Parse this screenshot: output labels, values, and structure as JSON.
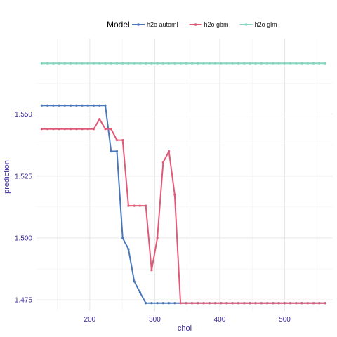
{
  "chart_data": {
    "type": "line",
    "xlabel": "chol",
    "ylabel": "prediction",
    "xlim": [
      118,
      574
    ],
    "ylim": [
      1.4705,
      1.5805
    ],
    "x_ticks": [
      200,
      300,
      400,
      500
    ],
    "y_ticks": [
      1.475,
      1.5,
      1.525,
      1.55
    ],
    "x_tick_labels": [
      "200",
      "300",
      "400",
      "500"
    ],
    "y_tick_labels": [
      "1.475",
      "1.500",
      "1.525",
      "1.550"
    ],
    "grid": true,
    "legend": {
      "title": "Model",
      "position": "top"
    },
    "axis_color": "#3b2a9c",
    "x": [
      126,
      134.9,
      143.8,
      152.7,
      161.6,
      170.5,
      179.4,
      188.3,
      197.2,
      206.1,
      215,
      223.9,
      232.8,
      241.7,
      250.6,
      259.5,
      268.4,
      277.3,
      286.2,
      295.1,
      304,
      312.9,
      321.8,
      330.7,
      339.6,
      348.5,
      357.4,
      366.3,
      375.2,
      384.1,
      393,
      401.9,
      410.8,
      419.7,
      428.6,
      437.5,
      446.4,
      455.3,
      464.2,
      473.1,
      482,
      490.9,
      499.8,
      508.7,
      517.6,
      526.5,
      535.4,
      544.3,
      553.2,
      562.1
    ],
    "series": [
      {
        "name": "h2o automl",
        "color": "#4a77ba",
        "values": [
          1.5535,
          1.5535,
          1.5535,
          1.5535,
          1.5535,
          1.5535,
          1.5535,
          1.5535,
          1.5535,
          1.5535,
          1.5535,
          1.5535,
          1.535,
          1.535,
          1.5,
          1.4955,
          1.4825,
          1.478,
          1.4737,
          1.4737,
          1.4737,
          1.4737,
          1.4737,
          1.4737,
          1.4737,
          1.4737,
          1.4737,
          1.4737,
          1.4737,
          1.4737,
          1.4737,
          1.4737,
          1.4737,
          1.4737,
          1.4737,
          1.4737,
          1.4737,
          1.4737,
          1.4737,
          1.4737,
          1.4737,
          1.4737,
          1.4737,
          1.4737,
          1.4737,
          1.4737,
          1.4737,
          1.4737,
          1.4737,
          1.4737
        ]
      },
      {
        "name": "h2o gbm",
        "color": "#e05a78",
        "values": [
          1.544,
          1.544,
          1.544,
          1.544,
          1.544,
          1.544,
          1.544,
          1.544,
          1.544,
          1.544,
          1.548,
          1.544,
          1.544,
          1.5395,
          1.5395,
          1.513,
          1.513,
          1.513,
          1.513,
          1.487,
          1.5,
          1.5305,
          1.535,
          1.5175,
          1.4737,
          1.4737,
          1.4737,
          1.4737,
          1.4737,
          1.4737,
          1.4737,
          1.4737,
          1.4737,
          1.4737,
          1.4737,
          1.4737,
          1.4737,
          1.4737,
          1.4737,
          1.4737,
          1.4737,
          1.4737,
          1.4737,
          1.4737,
          1.4737,
          1.4737,
          1.4737,
          1.4737,
          1.4737,
          1.4737
        ]
      },
      {
        "name": "h2o glm",
        "color": "#86d5c0",
        "values": [
          1.5705,
          1.5705,
          1.5705,
          1.5705,
          1.5705,
          1.5705,
          1.5705,
          1.5705,
          1.5705,
          1.5705,
          1.5705,
          1.5705,
          1.5705,
          1.5705,
          1.5705,
          1.5705,
          1.5705,
          1.5705,
          1.5705,
          1.5705,
          1.5705,
          1.5705,
          1.5705,
          1.5705,
          1.5705,
          1.5705,
          1.5705,
          1.5705,
          1.5705,
          1.5705,
          1.5705,
          1.5705,
          1.5705,
          1.5705,
          1.5705,
          1.5705,
          1.5705,
          1.5705,
          1.5705,
          1.5705,
          1.5705,
          1.5705,
          1.5705,
          1.5705,
          1.5705,
          1.5705,
          1.5705,
          1.5705,
          1.5705,
          1.5705
        ]
      }
    ]
  }
}
